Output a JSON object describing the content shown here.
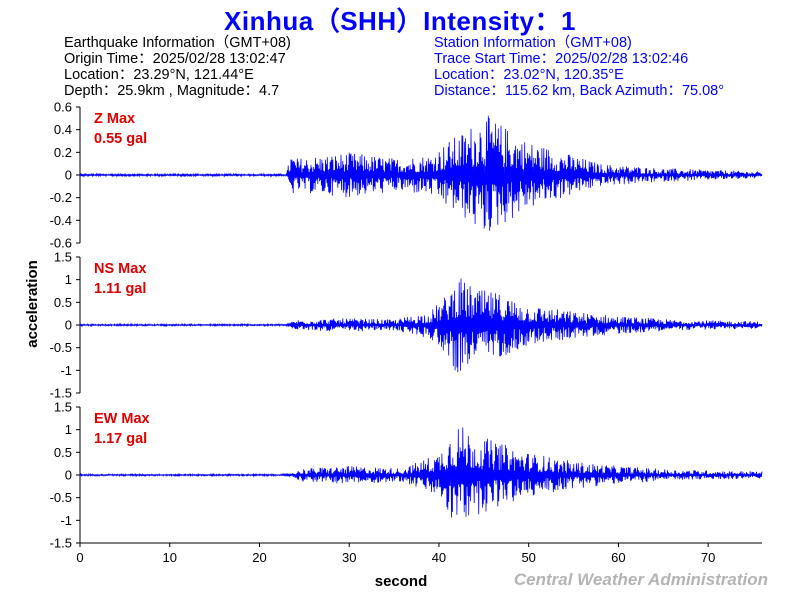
{
  "title": "Xinhua（SHH）Intensity：1",
  "earthquake_info": {
    "heading": "Earthquake Information（GMT+08)",
    "origin_time": "Origin Time：2025/02/28 13:02:47",
    "location": "Location：23.29°N, 121.44°E",
    "depth_magnitude": "Depth：25.9km , Magnitude：4.7"
  },
  "station_info": {
    "heading": "Station Information（GMT+08)",
    "trace_start": "Trace Start Time：2025/02/28 13:02:46",
    "location": "Location：23.02°N, 120.35°E",
    "distance_azimuth": "Distance：115.62 km, Back Azimuth：75.08°"
  },
  "agency": "Central Weather Administration",
  "colors": {
    "title": "#0000ff",
    "trace": "#0000ff",
    "max_label": "#e00000",
    "agency": "#b4b4b4"
  },
  "chart_data": {
    "type": "line",
    "xlabel": "second",
    "ylabel": "acceleration",
    "xlim": [
      0,
      76
    ],
    "xticks": [
      "0",
      "10",
      "20",
      "30",
      "40",
      "50",
      "60",
      "70"
    ],
    "x_tick_values": [
      0,
      10,
      20,
      30,
      40,
      50,
      60,
      70
    ],
    "grid": false,
    "panels": [
      {
        "component": "Z",
        "max_label": "Z Max",
        "max_value": "0.55 gal",
        "ylim": [
          -0.6,
          0.6
        ],
        "yticks": [
          "0.6",
          "0.4",
          "0.2",
          "0",
          "-0.2",
          "-0.4",
          "-0.6"
        ],
        "y_tick_values": [
          0.6,
          0.4,
          0.2,
          0,
          -0.2,
          -0.4,
          -0.6
        ],
        "envelope": [
          [
            0,
            0.01
          ],
          [
            23,
            0.01
          ],
          [
            23.5,
            0.2
          ],
          [
            24,
            0.15
          ],
          [
            30,
            0.2
          ],
          [
            35,
            0.15
          ],
          [
            39,
            0.18
          ],
          [
            41,
            0.3
          ],
          [
            43,
            0.4
          ],
          [
            45,
            0.55
          ],
          [
            48,
            0.4
          ],
          [
            50,
            0.3
          ],
          [
            54,
            0.2
          ],
          [
            58,
            0.1
          ],
          [
            65,
            0.06
          ],
          [
            76,
            0.03
          ]
        ]
      },
      {
        "component": "NS",
        "max_label": "NS Max",
        "max_value": "1.11 gal",
        "ylim": [
          -1.5,
          1.5
        ],
        "yticks": [
          "1.5",
          "1",
          "0.5",
          "0",
          "-0.5",
          "-1",
          "-1.5"
        ],
        "y_tick_values": [
          1.5,
          1,
          0.5,
          0,
          -0.5,
          -1,
          -1.5
        ],
        "envelope": [
          [
            0,
            0.02
          ],
          [
            23,
            0.02
          ],
          [
            24,
            0.12
          ],
          [
            30,
            0.15
          ],
          [
            35,
            0.12
          ],
          [
            39,
            0.3
          ],
          [
            41,
            0.7
          ],
          [
            42,
            1.11
          ],
          [
            44,
            0.8
          ],
          [
            47,
            0.7
          ],
          [
            50,
            0.45
          ],
          [
            55,
            0.3
          ],
          [
            60,
            0.2
          ],
          [
            66,
            0.12
          ],
          [
            76,
            0.08
          ]
        ]
      },
      {
        "component": "EW",
        "max_label": "EW Max",
        "max_value": "1.17 gal",
        "ylim": [
          -1.5,
          1.5
        ],
        "yticks": [
          "1.5",
          "1",
          "0.5",
          "0",
          "-0.5",
          "-1",
          "-1.5"
        ],
        "y_tick_values": [
          1.5,
          1,
          0.5,
          0,
          -0.5,
          -1,
          -1.5
        ],
        "envelope": [
          [
            0,
            0.02
          ],
          [
            23,
            0.02
          ],
          [
            25,
            0.15
          ],
          [
            30,
            0.2
          ],
          [
            36,
            0.15
          ],
          [
            40,
            0.5
          ],
          [
            41,
            0.9
          ],
          [
            42,
            1.17
          ],
          [
            44,
            0.9
          ],
          [
            47,
            0.7
          ],
          [
            50,
            0.5
          ],
          [
            55,
            0.3
          ],
          [
            60,
            0.2
          ],
          [
            66,
            0.12
          ],
          [
            76,
            0.08
          ]
        ]
      }
    ]
  }
}
